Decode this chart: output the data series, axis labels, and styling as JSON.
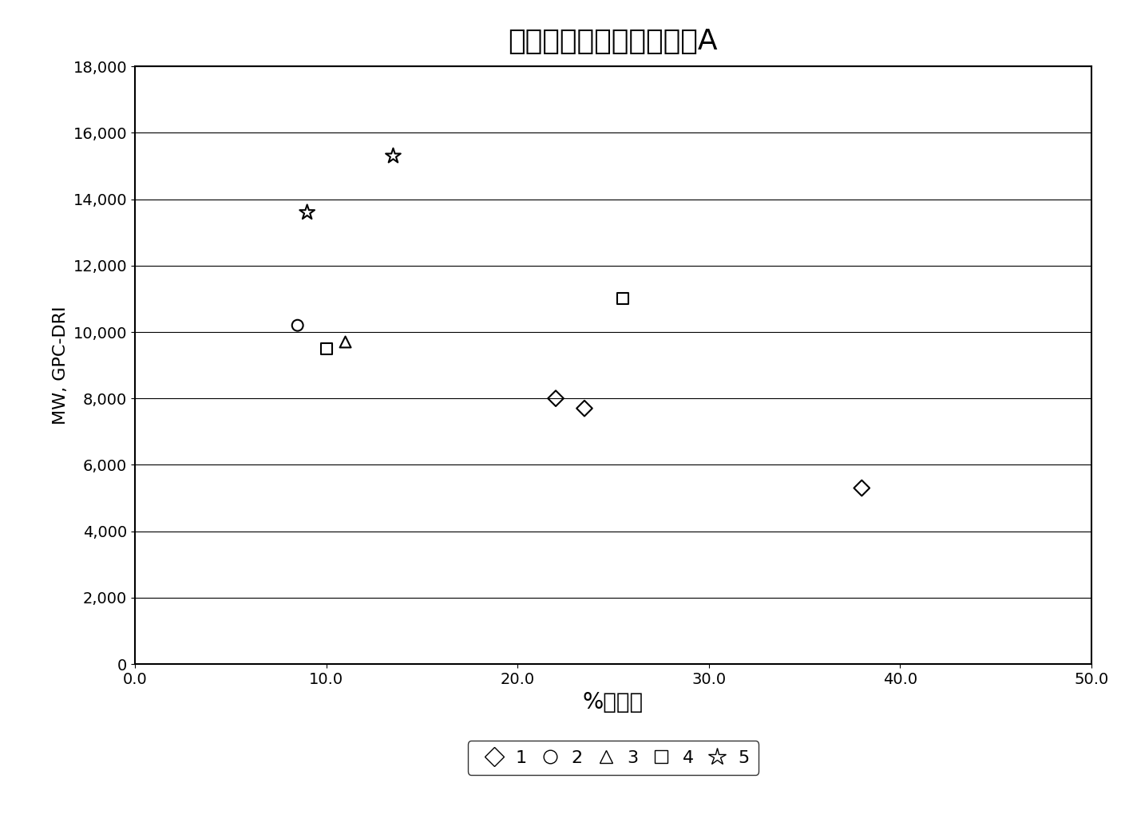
{
  "title": "具有各种活化剂的茂金属A",
  "xlabel": "%转化率",
  "ylabel": "MW, GPC-DRI",
  "xlim": [
    0.0,
    50.0
  ],
  "ylim": [
    0,
    18000
  ],
  "xticks": [
    0.0,
    10.0,
    20.0,
    30.0,
    40.0,
    50.0
  ],
  "yticks": [
    0,
    2000,
    4000,
    6000,
    8000,
    10000,
    12000,
    14000,
    16000,
    18000
  ],
  "ytick_labels": [
    "0",
    "2,000",
    "4,000",
    "6,000",
    "8,000",
    "10,000",
    "12,000",
    "14,000",
    "16,000",
    "18,000"
  ],
  "series": {
    "1": {
      "x": [
        22.0,
        23.5,
        38.0
      ],
      "y": [
        8000,
        7700,
        5300
      ],
      "marker": "D",
      "color": "black",
      "size": 100,
      "facecolor": "none"
    },
    "2": {
      "x": [
        8.5
      ],
      "y": [
        10200
      ],
      "marker": "o",
      "color": "black",
      "size": 100,
      "facecolor": "none"
    },
    "3": {
      "x": [
        11.0
      ],
      "y": [
        9700
      ],
      "marker": "^",
      "color": "black",
      "size": 100,
      "facecolor": "none"
    },
    "4": {
      "x": [
        10.0,
        25.5
      ],
      "y": [
        9500,
        11000
      ],
      "marker": "s",
      "color": "black",
      "size": 100,
      "facecolor": "none"
    },
    "5": {
      "x": [
        9.0,
        13.5
      ],
      "y": [
        13600,
        15300
      ],
      "marker": "*",
      "color": "black",
      "size": 200,
      "facecolor": "none"
    }
  },
  "background_color": "#ffffff",
  "grid_color": "#000000",
  "title_fontsize": 26,
  "label_fontsize": 20,
  "tick_fontsize": 14,
  "legend_fontsize": 16
}
